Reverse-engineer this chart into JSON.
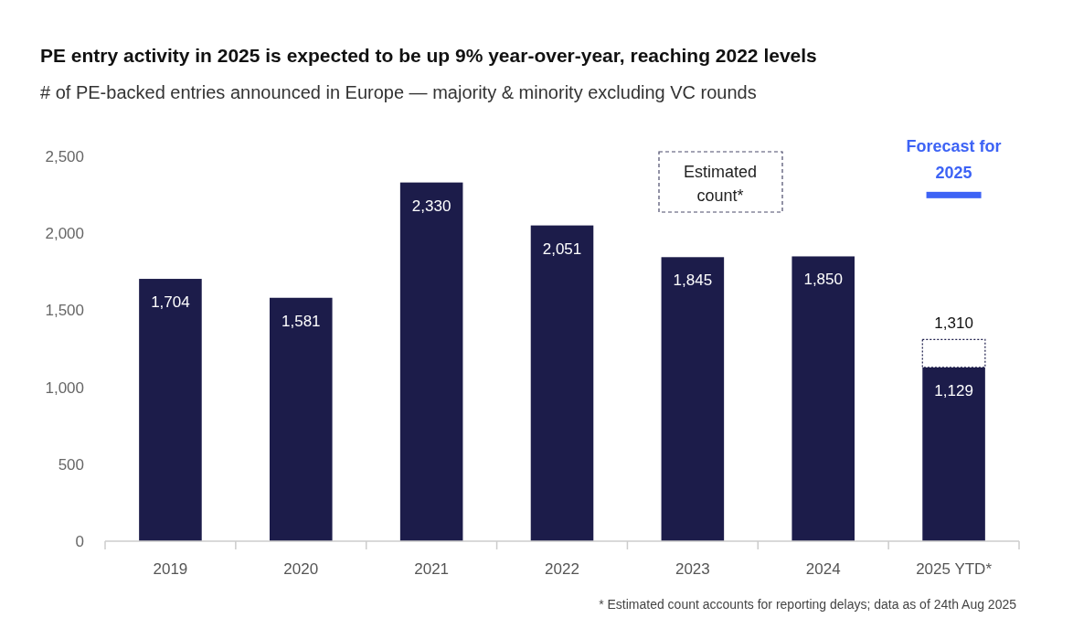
{
  "chart_data": {
    "type": "bar",
    "title": "PE entry activity in 2025 is expected to be up 9% year-over-year, reaching 2022 levels",
    "subtitle": "# of PE-backed entries announced in Europe — majority & minority excluding VC rounds",
    "categories": [
      "2019",
      "2020",
      "2021",
      "2022",
      "2023",
      "2024",
      "2025 YTD*"
    ],
    "stacked": true,
    "series": [
      {
        "color": "#1c1c4a",
        "values": [
          1704,
          1581,
          2330,
          2051,
          1845,
          1850,
          1129
        ],
        "value_labels": [
          "1,704",
          "1,581",
          "2,330",
          "2,051",
          "1,845",
          "1,850",
          "1,129"
        ]
      },
      {
        "name": "Estimated count*",
        "color": "#ffffff",
        "line_style": "dotted",
        "values": [
          null,
          null,
          null,
          null,
          null,
          null,
          181
        ]
      }
    ],
    "totals": [
      null,
      null,
      null,
      null,
      null,
      null,
      "1,310"
    ],
    "ylim": [
      0,
      2500
    ],
    "yticks": [
      0,
      {
        "value": 500,
        "label": "500"
      },
      {
        "value": 1000,
        "label": "1,000"
      },
      {
        "value": 1500,
        "label": "1,500"
      },
      {
        "value": 2000,
        "label": "2,000"
      },
      {
        "value": 2500,
        "label": "2,500"
      }
    ],
    "grid": false,
    "legend": "top",
    "annotations": [
      "Forecast for 2025",
      "* Estimated count accounts for reporting delays; data as of 24th Aug 2025"
    ]
  }
}
